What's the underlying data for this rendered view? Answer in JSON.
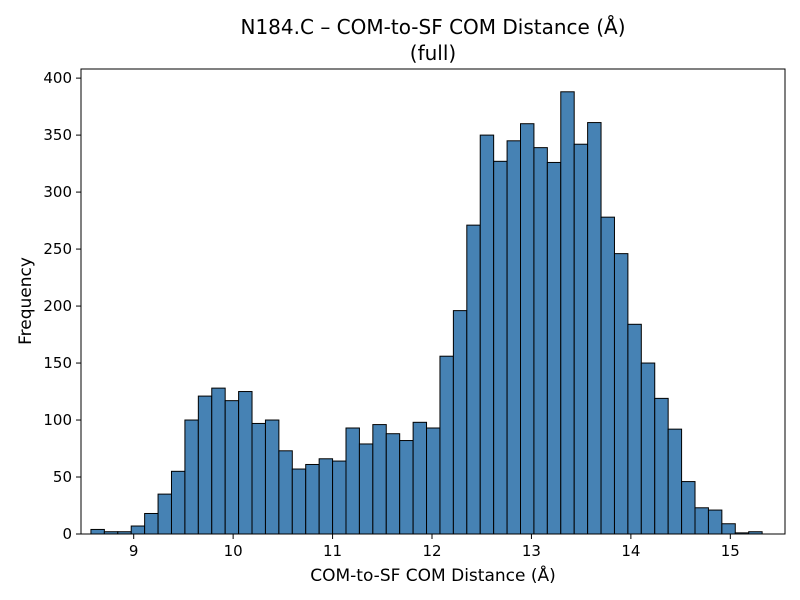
{
  "chart_data": {
    "type": "bar",
    "title": "N184.C – COM-to-SF COM Distance (Å)",
    "subtitle": "(full)",
    "xlabel": "COM-to-SF COM Distance (Å)",
    "ylabel": "Frequency",
    "xlim": [
      8.47,
      15.55
    ],
    "ylim": [
      0,
      408
    ],
    "xticks": [
      9,
      10,
      11,
      12,
      13,
      14,
      15
    ],
    "yticks": [
      0,
      50,
      100,
      150,
      200,
      250,
      300,
      350,
      400
    ],
    "grid": false,
    "bar_color": "#4682b4",
    "edge_color": "#000000",
    "bins": {
      "start": 8.57,
      "width": 0.135,
      "counts": [
        4,
        2,
        2,
        7,
        18,
        35,
        55,
        100,
        121,
        128,
        117,
        125,
        97,
        100,
        73,
        57,
        61,
        66,
        64,
        93,
        79,
        96,
        88,
        82,
        98,
        93,
        156,
        196,
        271,
        350,
        327,
        345,
        360,
        339,
        326,
        388,
        342,
        361,
        278,
        246,
        184,
        150,
        119,
        92,
        46,
        23,
        21,
        9,
        1,
        2
      ]
    }
  }
}
